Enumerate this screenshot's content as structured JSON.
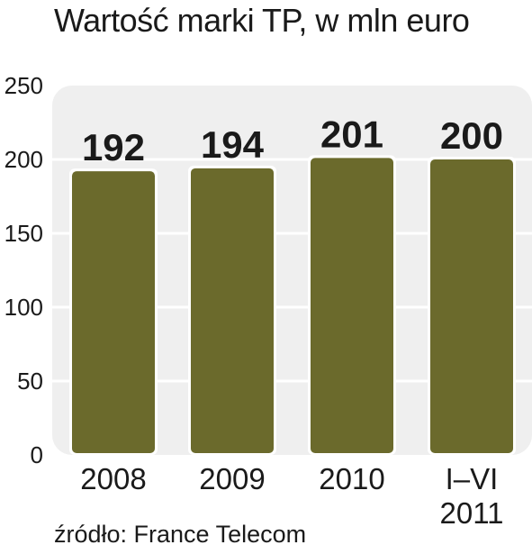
{
  "chart_data": {
    "type": "bar",
    "title": "Wartość marki TP, w mln euro",
    "categories": [
      [
        "2008"
      ],
      [
        "2009"
      ],
      [
        "2010"
      ],
      [
        "I–VI",
        "2011"
      ]
    ],
    "values": [
      192,
      194,
      201,
      200
    ],
    "value_labels": [
      "192",
      "194",
      "201",
      "200"
    ],
    "yticks": [
      "0",
      "50",
      "100",
      "150",
      "200",
      "250"
    ],
    "ylim": [
      0,
      250
    ],
    "grid": true,
    "source": "źródło: France Telecom"
  },
  "colors": {
    "bar": "#6b6a2c",
    "plot_bg": "#efefef",
    "grid": "#ffffff"
  }
}
